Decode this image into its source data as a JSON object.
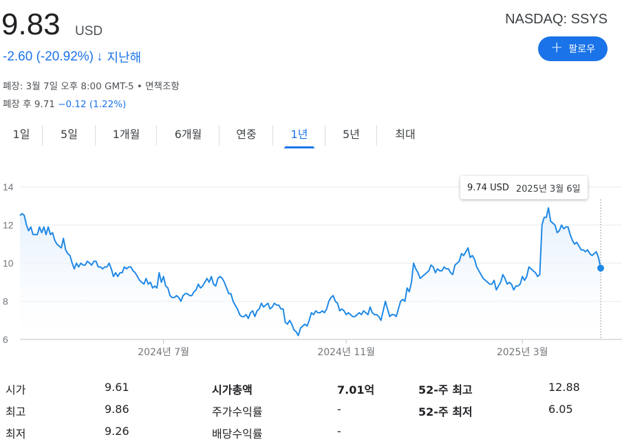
{
  "quote": {
    "price": "9.83",
    "currency": "USD",
    "exchange": "NASDAQ: SSYS",
    "change": "-2.60 (-20.92%)",
    "change_arrow": "↓",
    "change_period": "지난해",
    "close_info": "폐장: 3월 7일 오후 8:00 GMT-5 • 면책조항",
    "after_hours_label": "폐장 후 9.71",
    "after_hours_change": "−0.12 (1.22%)",
    "change_color": "#1a73e8"
  },
  "follow_button": {
    "label": "팔로우",
    "icon": "plus-icon"
  },
  "tabs": [
    {
      "label": "1일",
      "active": false
    },
    {
      "label": "5일",
      "active": false
    },
    {
      "label": "1개월",
      "active": false
    },
    {
      "label": "6개월",
      "active": false
    },
    {
      "label": "연중",
      "active": false
    },
    {
      "label": "1년",
      "active": true
    },
    {
      "label": "5년",
      "active": false
    },
    {
      "label": "최대",
      "active": false
    }
  ],
  "tooltip": {
    "price": "9.74 USD",
    "date": "2025년 3월 6일"
  },
  "chart_data": {
    "type": "area",
    "title": "",
    "xlabel": "",
    "ylabel": "",
    "ylim": [
      6,
      14
    ],
    "yticks": [
      "14",
      "12",
      "10",
      "8",
      "6"
    ],
    "xticks": [
      {
        "label": "2024년 7월",
        "index": 66
      },
      {
        "label": "2024년 11월",
        "index": 150
      },
      {
        "label": "2025년 3월",
        "index": 231
      }
    ],
    "line_color": "#1e88e5",
    "fill_color": "#e3effc",
    "grid": true,
    "series": [
      {
        "values": [
          12.5,
          12.6,
          12.5,
          12.0,
          11.7,
          11.9,
          11.5,
          11.5,
          11.5,
          11.9,
          11.6,
          11.9,
          11.5,
          11.9,
          11.5,
          11.6,
          11.2,
          11.0,
          10.9,
          10.8,
          11.3,
          10.7,
          10.5,
          10.4,
          10.0,
          9.7,
          10.0,
          9.8,
          10.0,
          9.9,
          9.9,
          10.1,
          10.0,
          9.9,
          10.1,
          10.1,
          9.8,
          9.8,
          9.7,
          9.8,
          9.8,
          10.0,
          9.7,
          9.3,
          9.5,
          9.3,
          9.5,
          9.5,
          9.8,
          9.7,
          9.8,
          9.8,
          9.6,
          9.5,
          9.3,
          9.1,
          9.0,
          8.9,
          9.2,
          8.9,
          9.0,
          8.7,
          8.8,
          8.7,
          9.5,
          9.0,
          9.3,
          8.8,
          8.7,
          8.3,
          8.2,
          8.2,
          8.3,
          8.2,
          8.0,
          8.3,
          8.4,
          8.4,
          8.3,
          8.3,
          8.5,
          8.6,
          8.9,
          8.7,
          8.8,
          9.0,
          9.2,
          9.0,
          9.3,
          8.9,
          8.8,
          9.2,
          9.3,
          9.2,
          9.0,
          8.7,
          8.4,
          8.4,
          8.0,
          7.8,
          7.6,
          7.3,
          7.2,
          7.2,
          7.3,
          7.1,
          7.4,
          7.5,
          7.2,
          7.5,
          7.6,
          7.9,
          7.7,
          7.8,
          7.9,
          7.6,
          7.7,
          7.9,
          7.8,
          7.8,
          7.6,
          7.6,
          6.9,
          6.8,
          7.0,
          6.8,
          6.5,
          6.4,
          6.2,
          6.6,
          6.7,
          6.8,
          6.7,
          7.0,
          7.4,
          7.3,
          7.5,
          7.4,
          7.4,
          7.5,
          7.4,
          7.6,
          8.0,
          8.2,
          8.3,
          8.0,
          7.9,
          7.5,
          7.6,
          7.5,
          7.3,
          7.4,
          7.3,
          7.2,
          7.2,
          7.3,
          7.4,
          7.3,
          7.5,
          7.4,
          7.3,
          7.7,
          7.4,
          7.3,
          7.3,
          7.2,
          7.0,
          7.5,
          8.0,
          7.6,
          7.2,
          7.3,
          7.3,
          7.2,
          7.6,
          8.0,
          8.1,
          8.0,
          8.7,
          8.5,
          9.0,
          10.0,
          9.7,
          9.5,
          9.2,
          9.3,
          9.4,
          9.5,
          9.6,
          9.9,
          9.8,
          9.5,
          9.7,
          9.6,
          9.6,
          9.8,
          9.7,
          9.7,
          9.5,
          9.4,
          9.9,
          10.0,
          10.1,
          10.5,
          10.4,
          10.6,
          10.8,
          10.3,
          10.4,
          10.2,
          9.8,
          9.6,
          9.4,
          9.2,
          9.1,
          9.0,
          8.9,
          8.9,
          9.1,
          8.6,
          8.8,
          9.0,
          9.4,
          9.2,
          8.9,
          9.0,
          8.9,
          8.6,
          8.8,
          8.8,
          8.9,
          9.3,
          9.1,
          9.3,
          9.8,
          9.7,
          9.6,
          9.5,
          9.3,
          9.4,
          12.0,
          12.4,
          12.4,
          12.9,
          12.2,
          12.1,
          12.0,
          11.6,
          11.7,
          12.0,
          11.8,
          11.9,
          11.9,
          11.5,
          11.2,
          11.0,
          11.1,
          10.9,
          10.7,
          10.7,
          10.6,
          10.7,
          10.5,
          10.4,
          10.5,
          10.6,
          10.3,
          9.74
        ]
      }
    ]
  },
  "stats": {
    "col1": [
      {
        "label": "시가",
        "value": "9.61"
      },
      {
        "label": "최고",
        "value": "9.86"
      },
      {
        "label": "최저",
        "value": "9.26"
      }
    ],
    "col2": [
      {
        "label": "시가총액",
        "value": "7.01억"
      },
      {
        "label": "주가수익률",
        "value": "-"
      },
      {
        "label": "배당수익률",
        "value": "-"
      }
    ],
    "col3": [
      {
        "label": "52-주 최고",
        "value": "12.88"
      },
      {
        "label": "52-주 최저",
        "value": "6.05"
      }
    ]
  }
}
